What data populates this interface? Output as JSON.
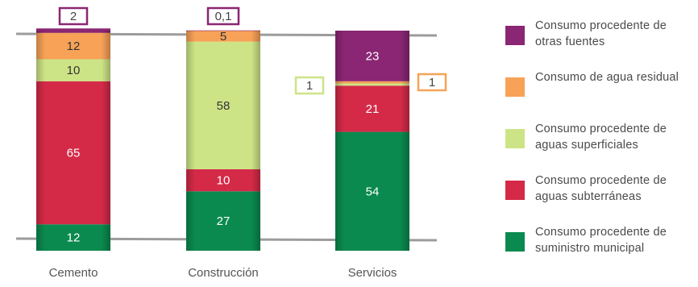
{
  "chart_data": {
    "type": "bar",
    "stacked": true,
    "categories": [
      "Cemento",
      "Construcción",
      "Servicios"
    ],
    "series": [
      {
        "name": "Consumo procedente de suministro municipal",
        "color": "#0a8a4e",
        "values": [
          12,
          27,
          54
        ],
        "labels": [
          "12",
          "27",
          "54"
        ]
      },
      {
        "name": "Consumo procedente de aguas subterráneas",
        "color": "#d42a48",
        "values": [
          65,
          10,
          21
        ],
        "labels": [
          "65",
          "10",
          "21"
        ]
      },
      {
        "name": "Consumo procedente de aguas superficiales",
        "color": "#cde486",
        "values": [
          10,
          58,
          1
        ],
        "labels": [
          "10",
          "58",
          "1"
        ]
      },
      {
        "name": "Consumo de agua residual",
        "color": "#f7a257",
        "values": [
          12,
          5,
          1
        ],
        "labels": [
          "12",
          "5",
          "1"
        ]
      },
      {
        "name": "Consumo procedente de otras fuentes",
        "color": "#8a2673",
        "values": [
          2,
          0.1,
          23
        ],
        "labels": [
          "2",
          "0,1",
          "23"
        ]
      }
    ],
    "callout_labels": [
      "2",
      "0,1",
      "1",
      "1"
    ],
    "ylim": [
      0,
      100
    ],
    "grid": false,
    "legend": "right"
  }
}
